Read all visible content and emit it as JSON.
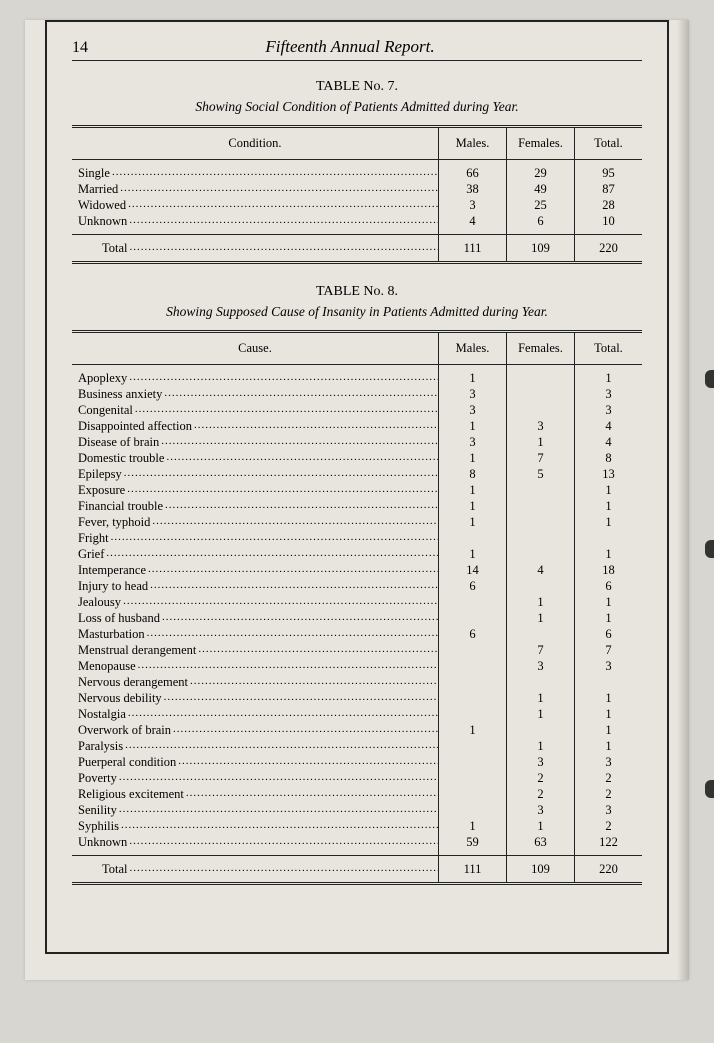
{
  "page": {
    "number": "14",
    "title": "Fifteenth Annual Report.",
    "background_color": "#e8e5de",
    "border_color": "#222222",
    "text_color": "#1a1a1a"
  },
  "table7": {
    "title": "TABLE No. 7.",
    "subtitle": "Showing Social Condition of Patients Admitted during Year.",
    "columns": [
      "Condition.",
      "Males.",
      "Females.",
      "Total."
    ],
    "rows": [
      {
        "label": "Single",
        "males": "66",
        "females": "29",
        "total": "95"
      },
      {
        "label": "Married",
        "males": "38",
        "females": "49",
        "total": "87"
      },
      {
        "label": "Widowed",
        "males": "3",
        "females": "25",
        "total": "28"
      },
      {
        "label": "Unknown",
        "males": "4",
        "females": "6",
        "total": "10"
      }
    ],
    "total": {
      "label": "Total",
      "males": "111",
      "females": "109",
      "total": "220"
    }
  },
  "table8": {
    "title": "TABLE No. 8.",
    "subtitle": "Showing Supposed Cause of Insanity in Patients Admitted during Year.",
    "columns": [
      "Cause.",
      "Males.",
      "Females.",
      "Total."
    ],
    "rows": [
      {
        "label": "Apoplexy",
        "males": "1",
        "females": "",
        "total": "1"
      },
      {
        "label": "Business anxiety",
        "males": "3",
        "females": "",
        "total": "3"
      },
      {
        "label": "Congenital",
        "males": "3",
        "females": "",
        "total": "3"
      },
      {
        "label": "Disappointed affection",
        "males": "1",
        "females": "3",
        "total": "4"
      },
      {
        "label": "Disease of brain",
        "males": "3",
        "females": "1",
        "total": "4"
      },
      {
        "label": "Domestic trouble",
        "males": "1",
        "females": "7",
        "total": "8"
      },
      {
        "label": "Epilepsy",
        "males": "8",
        "females": "5",
        "total": "13"
      },
      {
        "label": "Exposure",
        "males": "1",
        "females": "",
        "total": "1"
      },
      {
        "label": "Financial trouble",
        "males": "1",
        "females": "",
        "total": "1"
      },
      {
        "label": "Fever, typhoid",
        "males": "1",
        "females": "",
        "total": "1"
      },
      {
        "label": "Fright",
        "males": "",
        "females": "",
        "total": ""
      },
      {
        "label": "Grief",
        "males": "1",
        "females": "",
        "total": "1"
      },
      {
        "label": "Intemperance",
        "males": "14",
        "females": "4",
        "total": "18"
      },
      {
        "label": "Injury to head",
        "males": "6",
        "females": "",
        "total": "6"
      },
      {
        "label": "Jealousy",
        "males": "",
        "females": "1",
        "total": "1"
      },
      {
        "label": "Loss of husband",
        "males": "",
        "females": "1",
        "total": "1"
      },
      {
        "label": "Masturbation",
        "males": "6",
        "females": "",
        "total": "6"
      },
      {
        "label": "Menstrual derangement",
        "males": "",
        "females": "7",
        "total": "7"
      },
      {
        "label": "Menopause",
        "males": "",
        "females": "3",
        "total": "3"
      },
      {
        "label": "Nervous derangement",
        "males": "",
        "females": "",
        "total": ""
      },
      {
        "label": "Nervous debility",
        "males": "",
        "females": "1",
        "total": "1"
      },
      {
        "label": "Nostalgia",
        "males": "",
        "females": "1",
        "total": "1"
      },
      {
        "label": "Overwork of brain",
        "males": "1",
        "females": "",
        "total": "1"
      },
      {
        "label": "Paralysis",
        "males": "",
        "females": "1",
        "total": "1"
      },
      {
        "label": "Puerperal condition",
        "males": "",
        "females": "3",
        "total": "3"
      },
      {
        "label": "Poverty",
        "males": "",
        "females": "2",
        "total": "2"
      },
      {
        "label": "Religious excitement",
        "males": "",
        "females": "2",
        "total": "2"
      },
      {
        "label": "Senility",
        "males": "",
        "females": "3",
        "total": "3"
      },
      {
        "label": "Syphilis",
        "males": "1",
        "females": "1",
        "total": "2"
      },
      {
        "label": "Unknown",
        "males": "59",
        "females": "63",
        "total": "122"
      }
    ],
    "total": {
      "label": "Total",
      "males": "111",
      "females": "109",
      "total": "220"
    }
  }
}
